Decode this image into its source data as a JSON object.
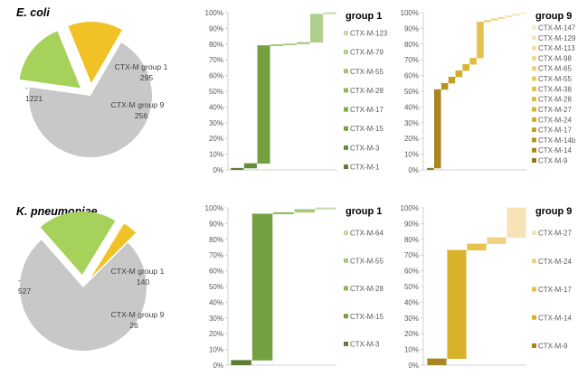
{
  "chart_data": [
    {
      "type": "pie",
      "organism": "E. coli",
      "slices": [
        {
          "label": "-",
          "value": 1221,
          "color": "#c8c8c8",
          "exploded": false
        },
        {
          "label": "CTX-M group 1",
          "value": 295,
          "color": "#a6d25c",
          "exploded": true
        },
        {
          "label": "CTX-M group 9",
          "value": 256,
          "color": "#f0c226",
          "exploded": true
        }
      ]
    },
    {
      "type": "waterfall",
      "organism": "E. coli",
      "group_title": "group 1",
      "yticks": [
        "0%",
        "10%",
        "20%",
        "30%",
        "40%",
        "50%",
        "60%",
        "70%",
        "80%",
        "90%",
        "100%"
      ],
      "ylim": [
        0,
        100
      ],
      "steps": [
        {
          "label": "CTX-M-1",
          "start": 0,
          "end": 1,
          "color": "#5c7f33"
        },
        {
          "label": "CTX-M-3",
          "start": 1,
          "end": 4,
          "color": "#658c38"
        },
        {
          "label": "CTX-M-15",
          "start": 4,
          "end": 79,
          "color": "#74a041"
        },
        {
          "label": "CTX-M-17",
          "start": 79,
          "end": 79.5,
          "color": "#80ad4a"
        },
        {
          "label": "CTX-M-28",
          "start": 79.5,
          "end": 80,
          "color": "#8fb85e"
        },
        {
          "label": "CTX-M-55",
          "start": 80,
          "end": 81,
          "color": "#a0c372"
        },
        {
          "label": "CTX-M-79",
          "start": 81,
          "end": 99,
          "color": "#b0cf8c"
        },
        {
          "label": "CTX-M-123",
          "start": 99,
          "end": 100,
          "color": "#c6dca8"
        }
      ]
    },
    {
      "type": "waterfall",
      "organism": "E. coli",
      "group_title": "group 9",
      "yticks": [
        "0%",
        "10%",
        "20%",
        "30%",
        "40%",
        "50%",
        "60%",
        "70%",
        "80%",
        "90%",
        "100%"
      ],
      "ylim": [
        0,
        100
      ],
      "steps": [
        {
          "label": "CTX-M-9",
          "start": 0,
          "end": 1,
          "color": "#94741c"
        },
        {
          "label": "CTX-M-14",
          "start": 1,
          "end": 51,
          "color": "#a8851e"
        },
        {
          "label": "CTX-M-14b",
          "start": 51,
          "end": 55,
          "color": "#b89322"
        },
        {
          "label": "CTX-M-17",
          "start": 55,
          "end": 59,
          "color": "#c6a026"
        },
        {
          "label": "CTX-M-24",
          "start": 59,
          "end": 63,
          "color": "#d1ab2a"
        },
        {
          "label": "CTX-M-27",
          "start": 63,
          "end": 67,
          "color": "#dbb42f"
        },
        {
          "label": "CTX-M-28",
          "start": 67,
          "end": 71,
          "color": "#e1bc3f"
        },
        {
          "label": "CTX-M-38",
          "start": 71,
          "end": 94,
          "color": "#e5c24f"
        },
        {
          "label": "CTX-M-55",
          "start": 94,
          "end": 95,
          "color": "#e9ca66"
        },
        {
          "label": "CTX-M-65",
          "start": 95,
          "end": 96,
          "color": "#edd27c"
        },
        {
          "label": "CTX-M-98",
          "start": 96,
          "end": 97,
          "color": "#f1da94"
        },
        {
          "label": "CTX-M-113",
          "start": 97,
          "end": 98,
          "color": "#f3e1a8"
        },
        {
          "label": "CTX-M-129",
          "start": 98,
          "end": 99,
          "color": "#f5e7bb"
        },
        {
          "label": "CTX-M-147",
          "start": 99,
          "end": 100,
          "color": "#f8eecf"
        }
      ]
    },
    {
      "type": "pie",
      "organism": "K. pneumoniae",
      "slices": [
        {
          "label": "-",
          "value": 527,
          "color": "#c8c8c8",
          "exploded": false
        },
        {
          "label": "CTX-M group 1",
          "value": 140,
          "color": "#a6d25c",
          "exploded": true
        },
        {
          "label": "CTX-M group 9",
          "value": 26,
          "color": "#f0c226",
          "exploded": true
        }
      ]
    },
    {
      "type": "waterfall",
      "organism": "K. pneumoniae",
      "group_title": "group 1",
      "yticks": [
        "0%",
        "10%",
        "20%",
        "30%",
        "40%",
        "50%",
        "60%",
        "70%",
        "80%",
        "90%",
        "100%"
      ],
      "ylim": [
        0,
        100
      ],
      "steps": [
        {
          "label": "CTX-M-3",
          "start": 0,
          "end": 3,
          "color": "#5c7f33"
        },
        {
          "label": "CTX-M-15",
          "start": 3,
          "end": 96,
          "color": "#74a041"
        },
        {
          "label": "CTX-M-28",
          "start": 96,
          "end": 97,
          "color": "#8fb85e"
        },
        {
          "label": "CTX-M-55",
          "start": 97,
          "end": 99,
          "color": "#a8c980"
        },
        {
          "label": "CTX-M-64",
          "start": 99,
          "end": 100,
          "color": "#c6dca8"
        }
      ]
    },
    {
      "type": "waterfall",
      "organism": "K. pneumoniae",
      "group_title": "group 9",
      "yticks": [
        "0%",
        "10%",
        "20%",
        "30%",
        "40%",
        "50%",
        "60%",
        "70%",
        "80%",
        "90%",
        "100%"
      ],
      "ylim": [
        0,
        100
      ],
      "steps": [
        {
          "label": "CTX-M-9",
          "start": 0,
          "end": 4,
          "color": "#a8851e"
        },
        {
          "label": "CTX-M-14",
          "start": 4,
          "end": 73,
          "color": "#d9b22c"
        },
        {
          "label": "CTX-M-17",
          "start": 73,
          "end": 77,
          "color": "#e6c24a"
        },
        {
          "label": "CTX-M-24",
          "start": 77,
          "end": 81,
          "color": "#efd385"
        },
        {
          "label": "CTX-M-27",
          "start": 81,
          "end": 100,
          "color": "#f6e4b8"
        }
      ]
    }
  ]
}
